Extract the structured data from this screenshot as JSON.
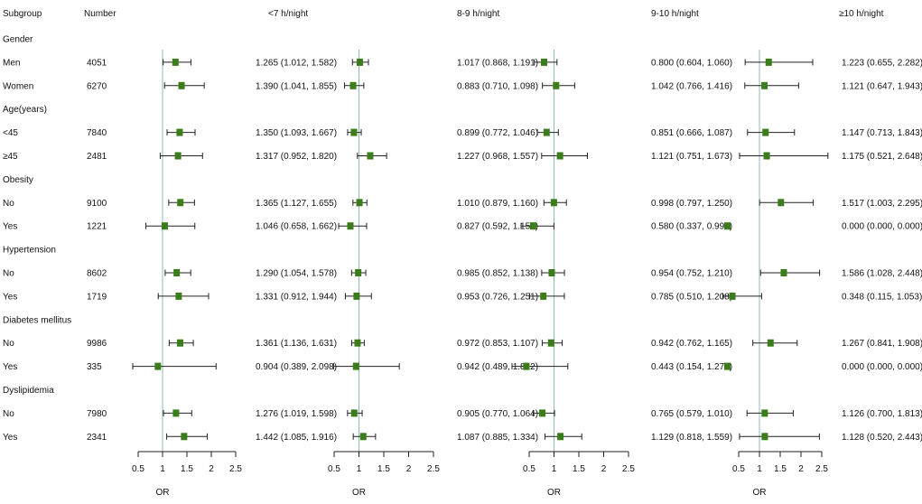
{
  "headers": {
    "subgroup": "Subgroup",
    "number": "Number",
    "panels": [
      "<7 h/night",
      "8-9 h/night",
      "9-10 h/night",
      "≥10 h/night"
    ]
  },
  "rows": [
    {
      "kind": "group",
      "label": "Gender"
    },
    {
      "kind": "item",
      "label": "Men",
      "n": "4051"
    },
    {
      "kind": "item",
      "label": "Women",
      "n": "6270"
    },
    {
      "kind": "group",
      "label": "Age(years)"
    },
    {
      "kind": "item",
      "label": "<45",
      "n": "7840"
    },
    {
      "kind": "item",
      "label": "≥45",
      "n": "2481"
    },
    {
      "kind": "group",
      "label": "Obesity"
    },
    {
      "kind": "item",
      "label": "No",
      "n": "9100"
    },
    {
      "kind": "item",
      "label": "Yes",
      "n": "1221"
    },
    {
      "kind": "group",
      "label": "Hypertension"
    },
    {
      "kind": "item",
      "label": "No",
      "n": "8602"
    },
    {
      "kind": "item",
      "label": "Yes",
      "n": "1719"
    },
    {
      "kind": "group",
      "label": "Diabetes mellitus"
    },
    {
      "kind": "item",
      "label": "No",
      "n": "9986"
    },
    {
      "kind": "item",
      "label": "Yes",
      "n": "335"
    },
    {
      "kind": "group",
      "label": "Dyslipidemia"
    },
    {
      "kind": "item",
      "label": "No",
      "n": "7980"
    },
    {
      "kind": "item",
      "label": "Yes",
      "n": "2341"
    }
  ],
  "chart_data": {
    "type": "forest",
    "xlabel": "OR",
    "xlim": [
      0.5,
      2.5
    ],
    "xticks": [
      "0.5",
      "1",
      "1.5",
      "2",
      "2.5"
    ],
    "reference_line": 1,
    "colors": {
      "marker": "#3a7d1a",
      "reference": "#8fb8bd",
      "whisker": "#222222"
    },
    "panels": [
      {
        "name": "<7 h/night",
        "labels": [
          "1.265 (1.012, 1.582)",
          "1.390 (1.041, 1.855)",
          "1.350 (1.093, 1.667)",
          "1.317 (0.952, 1.820)",
          "1.365 (1.127, 1.655)",
          "1.046 (0.658, 1.662)",
          "1.290 (1.054, 1.578)",
          "1.331 (0.912, 1.944)",
          "1.361 (1.136, 1.631)",
          "0.904 (0.389, 2.098)",
          "1.276 (1.019, 1.598)",
          "1.442 (1.085, 1.916)"
        ],
        "or": [
          1.265,
          1.39,
          1.35,
          1.317,
          1.365,
          1.046,
          1.29,
          1.331,
          1.361,
          0.904,
          1.276,
          1.442
        ],
        "lo": [
          1.012,
          1.041,
          1.093,
          0.952,
          1.127,
          0.658,
          1.054,
          0.912,
          1.136,
          0.389,
          1.019,
          1.085
        ],
        "hi": [
          1.582,
          1.855,
          1.667,
          1.82,
          1.655,
          1.662,
          1.578,
          1.944,
          1.631,
          2.098,
          1.598,
          1.916
        ]
      },
      {
        "name": "8-9 h/night",
        "labels": [
          "1.017 (0.868, 1.191)",
          "0.883 (0.710, 1.098)",
          "0.899 (0.772, 1.046)",
          "1.227 (0.968, 1.557)",
          "1.010 (0.879, 1.160)",
          "0.827 (0.592, 1.154)",
          "0.985 (0.852, 1.138)",
          "0.953 (0.726, 1.251)",
          "0.972 (0.853, 1.107)",
          "0.942 (0.489, 1.812)",
          "0.905 (0.770, 1.064)",
          "1.087 (0.885, 1.334)"
        ],
        "or": [
          1.017,
          0.883,
          0.899,
          1.227,
          1.01,
          0.827,
          0.985,
          0.953,
          0.972,
          0.942,
          0.905,
          1.087
        ],
        "lo": [
          0.868,
          0.71,
          0.772,
          0.968,
          0.879,
          0.592,
          0.852,
          0.726,
          0.853,
          0.489,
          0.77,
          0.885
        ],
        "hi": [
          1.191,
          1.098,
          1.046,
          1.557,
          1.16,
          1.154,
          1.138,
          1.251,
          1.107,
          1.812,
          1.064,
          1.334
        ]
      },
      {
        "name": "9-10 h/night",
        "labels": [
          "0.800 (0.604, 1.060)",
          "1.042 (0.766, 1.416)",
          "0.851 (0.666, 1.087)",
          "1.121 (0.751, 1.673)",
          "0.998 (0.797, 1.250)",
          "0.580 (0.337, 0.998)",
          "0.954 (0.752, 1.210)",
          "0.785 (0.510, 1.208)",
          "0.942 (0.762, 1.165)",
          "0.443 (0.154, 1.278)",
          "0.765 (0.579, 1.010)",
          "1.129 (0.818, 1.559)"
        ],
        "or": [
          0.8,
          1.042,
          0.851,
          1.121,
          0.998,
          0.58,
          0.954,
          0.785,
          0.942,
          0.443,
          0.765,
          1.129
        ],
        "lo": [
          0.604,
          0.766,
          0.666,
          0.751,
          0.797,
          0.337,
          0.752,
          0.51,
          0.762,
          0.154,
          0.579,
          0.818
        ],
        "hi": [
          1.06,
          1.416,
          1.087,
          1.673,
          1.25,
          0.998,
          1.21,
          1.208,
          1.165,
          1.278,
          1.01,
          1.559
        ]
      },
      {
        "name": "≥10 h/night",
        "labels": [
          "1.223 (0.655, 2.282)",
          "1.121 (0.647, 1.943)",
          "1.147 (0.713, 1.843)",
          "1.175 (0.521, 2.648)",
          "1.517 (1.003, 2.295)",
          "0.000 (0.000, 0.000)",
          "1.586 (1.028, 2.448)",
          "0.348 (0.115, 1.053)",
          "1.267 (0.841, 1.908)",
          "0.000 (0.000, 0.000)",
          "1.126 (0.700, 1.813)",
          "1.128 (0.520, 2.443)"
        ],
        "or": [
          1.223,
          1.121,
          1.147,
          1.175,
          1.517,
          0.0,
          1.586,
          0.348,
          1.267,
          0.0,
          1.126,
          1.128
        ],
        "lo": [
          0.655,
          0.647,
          0.713,
          0.521,
          1.003,
          0.0,
          1.028,
          0.115,
          0.841,
          0.0,
          0.7,
          0.52
        ],
        "hi": [
          2.282,
          1.943,
          1.843,
          2.648,
          2.295,
          0.0,
          2.448,
          1.053,
          1.908,
          0.0,
          1.813,
          2.443
        ]
      }
    ]
  }
}
